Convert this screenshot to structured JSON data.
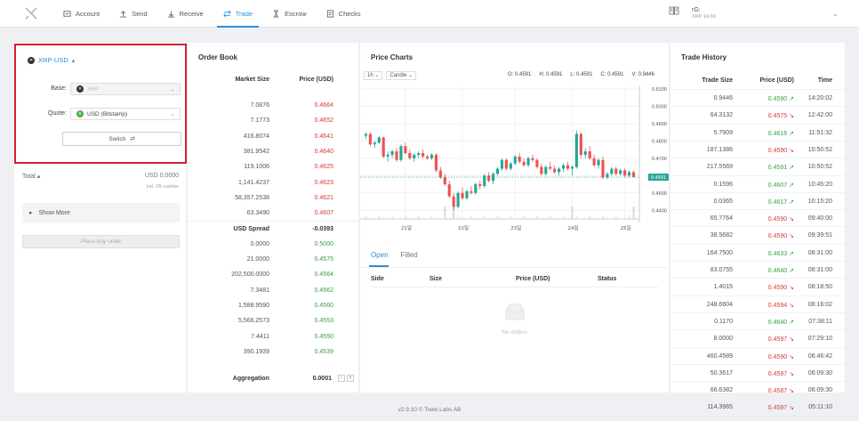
{
  "nav": {
    "items": [
      {
        "label": "Account",
        "icon": "account-icon"
      },
      {
        "label": "Send",
        "icon": "send-icon"
      },
      {
        "label": "Receive",
        "icon": "receive-icon"
      },
      {
        "label": "Trade",
        "icon": "trade-icon",
        "active": true
      },
      {
        "label": "Escrow",
        "icon": "hourglass-icon"
      },
      {
        "label": "Checks",
        "icon": "checks-icon"
      }
    ]
  },
  "wallet": {
    "address": "rG:",
    "balance": "XRP 14.00"
  },
  "order_form": {
    "pair": "XRP-USD",
    "base_label": "Base:",
    "base_value": "XRP",
    "quote_label": "Quote:",
    "quote_value": "USD (Bitstamp)",
    "switch_label": "Switch",
    "total_label": "Total",
    "total_value": "USD 0.0000",
    "cushion": "incl. 2% cushion",
    "show_more": "Show More",
    "place_order": "Place buy order"
  },
  "order_book": {
    "title": "Order Book",
    "col_size": "Market Size",
    "col_price": "Price (USD)",
    "asks": [
      {
        "size": "7.0876",
        "price": "0.4664"
      },
      {
        "size": "7.1773",
        "price": "0.4652"
      },
      {
        "size": "416.8074",
        "price": "0.4641"
      },
      {
        "size": "381.9542",
        "price": "0.4640"
      },
      {
        "size": "119.1006",
        "price": "0.4625"
      },
      {
        "size": "1,141.4237",
        "price": "0.4623"
      },
      {
        "size": "58,357.2538",
        "price": "0.4621"
      },
      {
        "size": "63.3490",
        "price": "0.4607"
      }
    ],
    "spread_label": "USD Spread",
    "spread_value": "-0.0393",
    "bids": [
      {
        "size": "0.0000",
        "price": "0.5000"
      },
      {
        "size": "21.0000",
        "price": "0.4575"
      },
      {
        "size": "202,500.0000",
        "price": "0.4564"
      },
      {
        "size": "7.3481",
        "price": "0.4562"
      },
      {
        "size": "1,588.9590",
        "price": "0.4560"
      },
      {
        "size": "5,566.2573",
        "price": "0.4553"
      },
      {
        "size": "7.4411",
        "price": "0.4550"
      },
      {
        "size": "390.1939",
        "price": "0.4539"
      }
    ],
    "aggregation_label": "Aggregation",
    "aggregation_value": "0.0001"
  },
  "price_chart": {
    "title": "Price Charts",
    "interval": "1h",
    "type": "Candle",
    "ohlc": {
      "o": "O: 0.4591",
      "h": "H: 0.4591",
      "l": "L: 0.4591",
      "c": "C: 0.4591",
      "v": "V: 0.9446"
    },
    "current_price": "0.4591",
    "y_ticks": [
      "0.5100",
      "0.5000",
      "0.4900",
      "0.4800",
      "0.4700",
      "0.4600",
      "0.4500",
      "0.4400"
    ],
    "x_ticks": [
      "21일",
      "22일",
      "23일",
      "24일",
      "25일"
    ]
  },
  "chart_data": {
    "type": "candlestick",
    "title": "Price Charts",
    "ylim": [
      0.435,
      0.512
    ],
    "x_ticks": [
      "21일",
      "22일",
      "23일",
      "24일",
      "25일"
    ],
    "candles": [
      [
        0.483,
        0.485,
        0.481,
        0.484
      ],
      [
        0.484,
        0.485,
        0.477,
        0.478
      ],
      [
        0.478,
        0.48,
        0.476,
        0.479
      ],
      [
        0.479,
        0.483,
        0.478,
        0.482
      ],
      [
        0.482,
        0.4825,
        0.47,
        0.471
      ],
      [
        0.471,
        0.474,
        0.468,
        0.472
      ],
      [
        0.472,
        0.475,
        0.47,
        0.474
      ],
      [
        0.474,
        0.476,
        0.468,
        0.469
      ],
      [
        0.469,
        0.478,
        0.468,
        0.477
      ],
      [
        0.477,
        0.479,
        0.472,
        0.473
      ],
      [
        0.473,
        0.475,
        0.469,
        0.47
      ],
      [
        0.47,
        0.473,
        0.468,
        0.472
      ],
      [
        0.472,
        0.474,
        0.47,
        0.473
      ],
      [
        0.473,
        0.475,
        0.47,
        0.471
      ],
      [
        0.471,
        0.472,
        0.469,
        0.47
      ],
      [
        0.47,
        0.473,
        0.469,
        0.472
      ],
      [
        0.472,
        0.473,
        0.462,
        0.463
      ],
      [
        0.463,
        0.465,
        0.458,
        0.459
      ],
      [
        0.459,
        0.461,
        0.454,
        0.455
      ],
      [
        0.455,
        0.457,
        0.447,
        0.448
      ],
      [
        0.448,
        0.45,
        0.44,
        0.442
      ],
      [
        0.442,
        0.451,
        0.441,
        0.45
      ],
      [
        0.45,
        0.453,
        0.446,
        0.447
      ],
      [
        0.447,
        0.452,
        0.446,
        0.451
      ],
      [
        0.451,
        0.454,
        0.449,
        0.45
      ],
      [
        0.45,
        0.456,
        0.449,
        0.455
      ],
      [
        0.455,
        0.457,
        0.452,
        0.454
      ],
      [
        0.454,
        0.461,
        0.453,
        0.46
      ],
      [
        0.46,
        0.462,
        0.456,
        0.457
      ],
      [
        0.457,
        0.462,
        0.455,
        0.461
      ],
      [
        0.461,
        0.465,
        0.46,
        0.464
      ],
      [
        0.464,
        0.47,
        0.463,
        0.469
      ],
      [
        0.469,
        0.47,
        0.463,
        0.464
      ],
      [
        0.464,
        0.468,
        0.463,
        0.467
      ],
      [
        0.467,
        0.472,
        0.466,
        0.471
      ],
      [
        0.471,
        0.473,
        0.467,
        0.468
      ],
      [
        0.468,
        0.47,
        0.465,
        0.466
      ],
      [
        0.466,
        0.471,
        0.465,
        0.47
      ],
      [
        0.47,
        0.472,
        0.468,
        0.469
      ],
      [
        0.469,
        0.47,
        0.464,
        0.465
      ],
      [
        0.465,
        0.467,
        0.46,
        0.461
      ],
      [
        0.461,
        0.466,
        0.46,
        0.465
      ],
      [
        0.465,
        0.468,
        0.463,
        0.464
      ],
      [
        0.464,
        0.466,
        0.461,
        0.462
      ],
      [
        0.462,
        0.465,
        0.46,
        0.464
      ],
      [
        0.464,
        0.467,
        0.462,
        0.466
      ],
      [
        0.466,
        0.468,
        0.463,
        0.464
      ],
      [
        0.464,
        0.466,
        0.46,
        0.465
      ],
      [
        0.465,
        0.486,
        0.464,
        0.484
      ],
      [
        0.484,
        0.485,
        0.47,
        0.472
      ],
      [
        0.472,
        0.476,
        0.47,
        0.474
      ],
      [
        0.474,
        0.477,
        0.469,
        0.47
      ],
      [
        0.47,
        0.472,
        0.465,
        0.466
      ],
      [
        0.466,
        0.47,
        0.464,
        0.469
      ],
      [
        0.469,
        0.471,
        0.458,
        0.459
      ],
      [
        0.459,
        0.462,
        0.458,
        0.461
      ],
      [
        0.461,
        0.465,
        0.46,
        0.464
      ],
      [
        0.464,
        0.465,
        0.46,
        0.461
      ],
      [
        0.461,
        0.464,
        0.46,
        0.463
      ],
      [
        0.463,
        0.464,
        0.459,
        0.46
      ],
      [
        0.46,
        0.463,
        0.459,
        0.462
      ],
      [
        0.462,
        0.463,
        0.459,
        0.4591
      ]
    ],
    "volume_spikes": [
      18,
      20,
      47,
      61
    ]
  },
  "orders": {
    "tab_open": "Open",
    "tab_filled": "Filled",
    "cols": [
      "Side",
      "Size",
      "Price (USD)",
      "Status"
    ],
    "empty": "No orders"
  },
  "trade_history": {
    "title": "Trade History",
    "cols": [
      "Trade Size",
      "Price (USD)",
      "Time"
    ],
    "rows": [
      {
        "size": "0.9446",
        "price": "0.4590",
        "dir": "up",
        "time": "14:20:02"
      },
      {
        "size": "64.3132",
        "price": "0.4575",
        "dir": "down",
        "time": "12:42:00"
      },
      {
        "size": "5.7909",
        "price": "0.4616",
        "dir": "up",
        "time": "11:51:32"
      },
      {
        "size": "187.1386",
        "price": "0.4590",
        "dir": "down",
        "time": "10:50:52"
      },
      {
        "size": "217.5569",
        "price": "0.4591",
        "dir": "up",
        "time": "10:50:52"
      },
      {
        "size": "0.1596",
        "price": "0.4607",
        "dir": "up",
        "time": "10:45:20"
      },
      {
        "size": "0.0365",
        "price": "0.4617",
        "dir": "up",
        "time": "10:15:20"
      },
      {
        "size": "65.7764",
        "price": "0.4590",
        "dir": "down",
        "time": "09:40:00"
      },
      {
        "size": "38.5682",
        "price": "0.4590",
        "dir": "down",
        "time": "09:39:51"
      },
      {
        "size": "164.7500",
        "price": "0.4633",
        "dir": "up",
        "time": "08:31:00"
      },
      {
        "size": "83.0755",
        "price": "0.4640",
        "dir": "up",
        "time": "08:31:00"
      },
      {
        "size": "1.4015",
        "price": "0.4590",
        "dir": "down",
        "time": "08:18:50"
      },
      {
        "size": "248.6604",
        "price": "0.4594",
        "dir": "down",
        "time": "08:16:02"
      },
      {
        "size": "0.1170",
        "price": "0.4640",
        "dir": "up",
        "time": "07:38:11"
      },
      {
        "size": "8.0000",
        "price": "0.4597",
        "dir": "down",
        "time": "07:29:10"
      },
      {
        "size": "460.4589",
        "price": "0.4590",
        "dir": "down",
        "time": "06:46:42"
      },
      {
        "size": "50.3617",
        "price": "0.4597",
        "dir": "down",
        "time": "06:09:30"
      },
      {
        "size": "66.6382",
        "price": "0.4587",
        "dir": "down",
        "time": "06:09:30"
      },
      {
        "size": "114.3965",
        "price": "0.4597",
        "dir": "down",
        "time": "05:11:10"
      }
    ]
  },
  "footer": "v2.9.10 © Towo Labs AB"
}
